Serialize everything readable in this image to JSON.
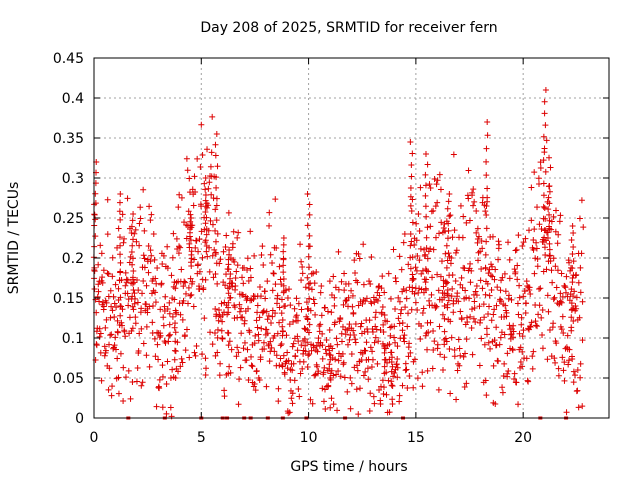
{
  "chart_data": {
    "type": "scatter",
    "title": "Day 208 of 2025, SRMTID for receiver fern",
    "xlabel": "GPS time / hours",
    "ylabel": "SRMTID / TECUs",
    "xlim": [
      0,
      24
    ],
    "ylim": [
      0,
      0.45
    ],
    "xticks": [
      0,
      5,
      10,
      15,
      20
    ],
    "xtick_labels": [
      "0",
      "5",
      "10",
      "15",
      "20"
    ],
    "yticks": [
      0,
      0.05,
      0.1,
      0.15,
      0.2,
      0.25,
      0.3,
      0.35,
      0.4,
      0.45
    ],
    "ytick_labels": [
      "0",
      "0.05",
      "0.1",
      "0.15",
      "0.2",
      "0.25",
      "0.3",
      "0.35",
      "0.4",
      "0.45"
    ],
    "grid": true,
    "marker": "+",
    "color": "#dd0000",
    "series": [
      {
        "name": "SRMTID",
        "trend": [
          {
            "x": 0.0,
            "y": 0.15
          },
          {
            "x": 0.5,
            "y": 0.13
          },
          {
            "x": 1.0,
            "y": 0.12
          },
          {
            "x": 1.5,
            "y": 0.17
          },
          {
            "x": 2.0,
            "y": 0.14
          },
          {
            "x": 2.5,
            "y": 0.16
          },
          {
            "x": 3.0,
            "y": 0.14
          },
          {
            "x": 3.5,
            "y": 0.1
          },
          {
            "x": 4.0,
            "y": 0.15
          },
          {
            "x": 4.5,
            "y": 0.19
          },
          {
            "x": 5.0,
            "y": 0.2
          },
          {
            "x": 5.5,
            "y": 0.22
          },
          {
            "x": 6.0,
            "y": 0.12
          },
          {
            "x": 6.5,
            "y": 0.14
          },
          {
            "x": 7.0,
            "y": 0.13
          },
          {
            "x": 7.5,
            "y": 0.1
          },
          {
            "x": 8.0,
            "y": 0.12
          },
          {
            "x": 8.5,
            "y": 0.15
          },
          {
            "x": 9.0,
            "y": 0.09
          },
          {
            "x": 9.5,
            "y": 0.1
          },
          {
            "x": 10.0,
            "y": 0.11
          },
          {
            "x": 10.5,
            "y": 0.08
          },
          {
            "x": 11.0,
            "y": 0.09
          },
          {
            "x": 11.5,
            "y": 0.1
          },
          {
            "x": 12.0,
            "y": 0.11
          },
          {
            "x": 12.5,
            "y": 0.12
          },
          {
            "x": 13.0,
            "y": 0.11
          },
          {
            "x": 13.5,
            "y": 0.09
          },
          {
            "x": 14.0,
            "y": 0.08
          },
          {
            "x": 14.5,
            "y": 0.14
          },
          {
            "x": 15.0,
            "y": 0.17
          },
          {
            "x": 15.5,
            "y": 0.16
          },
          {
            "x": 16.0,
            "y": 0.19
          },
          {
            "x": 16.5,
            "y": 0.16
          },
          {
            "x": 17.0,
            "y": 0.13
          },
          {
            "x": 17.5,
            "y": 0.17
          },
          {
            "x": 18.0,
            "y": 0.16
          },
          {
            "x": 18.5,
            "y": 0.15
          },
          {
            "x": 19.0,
            "y": 0.12
          },
          {
            "x": 19.5,
            "y": 0.11
          },
          {
            "x": 20.0,
            "y": 0.13
          },
          {
            "x": 20.5,
            "y": 0.18
          },
          {
            "x": 21.0,
            "y": 0.22
          },
          {
            "x": 21.5,
            "y": 0.16
          },
          {
            "x": 22.0,
            "y": 0.12
          },
          {
            "x": 22.5,
            "y": 0.13
          },
          {
            "x": 22.8,
            "y": 0.15
          }
        ],
        "peaks": [
          {
            "x": 0.05,
            "y": 0.32
          },
          {
            "x": 1.2,
            "y": 0.28
          },
          {
            "x": 1.8,
            "y": 0.255
          },
          {
            "x": 4.5,
            "y": 0.25
          },
          {
            "x": 5.2,
            "y": 0.3
          },
          {
            "x": 5.7,
            "y": 0.355
          },
          {
            "x": 6.3,
            "y": 0.21
          },
          {
            "x": 8.8,
            "y": 0.225
          },
          {
            "x": 10.0,
            "y": 0.28
          },
          {
            "x": 14.8,
            "y": 0.345
          },
          {
            "x": 15.5,
            "y": 0.33
          },
          {
            "x": 16.5,
            "y": 0.28
          },
          {
            "x": 18.3,
            "y": 0.37
          },
          {
            "x": 21.0,
            "y": 0.41
          },
          {
            "x": 21.2,
            "y": 0.29
          },
          {
            "x": 22.3,
            "y": 0.24
          }
        ],
        "troughs": [
          {
            "x": 3.8,
            "y": 0.05
          },
          {
            "x": 13.5,
            "y": 0.03
          },
          {
            "x": 13.9,
            "y": 0.04
          },
          {
            "x": 16.3,
            "y": 0.06
          },
          {
            "x": 11.0,
            "y": 0.05
          }
        ]
      }
    ],
    "baseline_markers_x": [
      1.6,
      3.3,
      5.0,
      6.0,
      6.2,
      7.0,
      7.3,
      8.1,
      8.8,
      9.9,
      11.7,
      14.4,
      20.8,
      22.0
    ]
  }
}
